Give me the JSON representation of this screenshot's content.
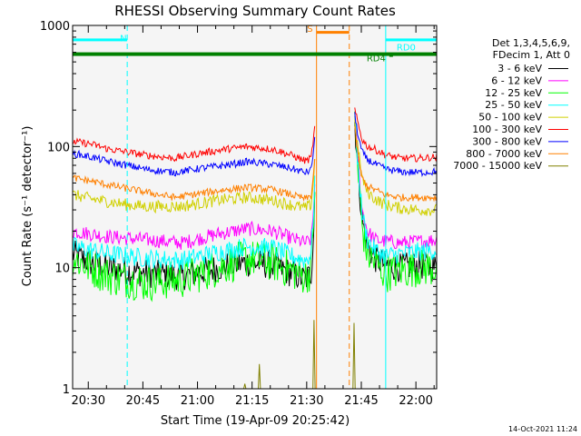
{
  "chart_data": {
    "type": "line",
    "title": "RHESSI Observing Summary Count Rates",
    "xlabel": "Start Time (19-Apr-09 20:25:42)",
    "ylabel": "Count Rate (s⁻¹ detector⁻¹)",
    "x_unit": "minutes after 20:25:42",
    "xlim": [
      0,
      100
    ],
    "ylim": [
      1,
      1000
    ],
    "y_scale": "log",
    "x_ticks": [
      {
        "label": "20:30",
        "value": 4.3
      },
      {
        "label": "20:45",
        "value": 19.3
      },
      {
        "label": "21:00",
        "value": 34.3
      },
      {
        "label": "21:15",
        "value": 49.3
      },
      {
        "label": "21:30",
        "value": 64.3
      },
      {
        "label": "21:45",
        "value": 79.3
      },
      {
        "label": "22:00",
        "value": 94.3
      }
    ],
    "y_ticks": [
      {
        "label": "1",
        "value": 1
      },
      {
        "label": "10",
        "value": 10
      },
      {
        "label": "100",
        "value": 100
      },
      {
        "label": "1000",
        "value": 1000
      }
    ],
    "legend_position": "right",
    "legend_header": [
      "Det 1,3,4,5,6,9,",
      "FDecim 1, Att 0"
    ],
    "timestamp": "14-Oct-2021 11:24",
    "annotations": {
      "N": {
        "label": "N",
        "x_start": 0,
        "x_end": 15,
        "color": "#00ffff"
      },
      "S": {
        "label": "S",
        "x_start": 67,
        "x_end": 76,
        "color": "#ff8000"
      },
      "RD0": {
        "label": "RD0",
        "x_start": 86,
        "x_end": 100,
        "color": "#00ffff"
      },
      "RD4": {
        "label": "RD4",
        "x": 87,
        "color": "#008000"
      }
    },
    "night_band": {
      "x_start": 0,
      "x_end": 100,
      "color": "#008000"
    },
    "vlines": [
      {
        "x": 15,
        "style": "dashed",
        "color": "#00ffff"
      },
      {
        "x": 67,
        "style": "solid",
        "color": "#ff8000"
      },
      {
        "x": 76,
        "style": "dashed",
        "color": "#ff8000"
      },
      {
        "x": 86,
        "style": "solid",
        "color": "#00ffff"
      },
      {
        "x": 100,
        "style": "dashed",
        "color": "#00ffff"
      }
    ],
    "gap": [
      67,
      76
    ],
    "series": [
      {
        "name": "3 - 6 keV",
        "color": "#000000",
        "noise": 0.12,
        "points": [
          [
            0,
            13
          ],
          [
            5,
            11
          ],
          [
            10,
            10
          ],
          [
            15,
            9.5
          ],
          [
            20,
            9
          ],
          [
            30,
            8.5
          ],
          [
            40,
            10
          ],
          [
            48,
            11
          ],
          [
            55,
            10.5
          ],
          [
            60,
            9
          ],
          [
            64,
            8
          ],
          [
            65.5,
            9
          ],
          [
            66.2,
            20
          ],
          [
            66.7,
            70
          ],
          [
            77.5,
            160
          ],
          [
            78.5,
            60
          ],
          [
            79.5,
            25
          ],
          [
            81,
            15
          ],
          [
            83,
            12
          ],
          [
            86,
            10.5
          ],
          [
            90,
            10
          ],
          [
            95,
            10.5
          ],
          [
            100,
            10
          ]
        ]
      },
      {
        "name": "6 - 12 keV",
        "color": "#ff00ff",
        "noise": 0.06,
        "points": [
          [
            0,
            20
          ],
          [
            5,
            19
          ],
          [
            10,
            18
          ],
          [
            15,
            17.5
          ],
          [
            20,
            17
          ],
          [
            30,
            16
          ],
          [
            40,
            19
          ],
          [
            48,
            21
          ],
          [
            55,
            20
          ],
          [
            60,
            17.5
          ],
          [
            64,
            16
          ],
          [
            65.5,
            17
          ],
          [
            66.2,
            30
          ],
          [
            66.7,
            80
          ],
          [
            77.5,
            170
          ],
          [
            78.5,
            70
          ],
          [
            79.5,
            30
          ],
          [
            81,
            20
          ],
          [
            83,
            17
          ],
          [
            86,
            16.5
          ],
          [
            90,
            16
          ],
          [
            95,
            16.5
          ],
          [
            100,
            17
          ]
        ]
      },
      {
        "name": "12 - 25 keV",
        "color": "#00ff00",
        "noise": 0.16,
        "points": [
          [
            0,
            12
          ],
          [
            5,
            10
          ],
          [
            10,
            8.5
          ],
          [
            15,
            8
          ],
          [
            20,
            7.5
          ],
          [
            30,
            8
          ],
          [
            40,
            10
          ],
          [
            48,
            12
          ],
          [
            55,
            11
          ],
          [
            60,
            9.5
          ],
          [
            64,
            8.5
          ],
          [
            65.5,
            9.5
          ],
          [
            66.2,
            25
          ],
          [
            66.7,
            75
          ],
          [
            77.5,
            150
          ],
          [
            78.5,
            55
          ],
          [
            79.5,
            22
          ],
          [
            81,
            13
          ],
          [
            83,
            11
          ],
          [
            86,
            9
          ],
          [
            90,
            9.5
          ],
          [
            95,
            10
          ],
          [
            100,
            10
          ]
        ]
      },
      {
        "name": "25 - 50 keV",
        "color": "#00ffff",
        "noise": 0.08,
        "points": [
          [
            0,
            15
          ],
          [
            5,
            14
          ],
          [
            10,
            13
          ],
          [
            15,
            12.5
          ],
          [
            20,
            12
          ],
          [
            30,
            11.5
          ],
          [
            40,
            13.5
          ],
          [
            48,
            15
          ],
          [
            55,
            14.5
          ],
          [
            60,
            12.5
          ],
          [
            64,
            11.5
          ],
          [
            65.5,
            13
          ],
          [
            66.2,
            30
          ],
          [
            66.7,
            80
          ],
          [
            77.5,
            170
          ],
          [
            78.5,
            65
          ],
          [
            79.5,
            28
          ],
          [
            81,
            17
          ],
          [
            83,
            14
          ],
          [
            86,
            12.5
          ],
          [
            90,
            13
          ],
          [
            95,
            13.5
          ],
          [
            100,
            14
          ]
        ]
      },
      {
        "name": "50 - 100 keV",
        "color": "#d0d000",
        "noise": 0.05,
        "points": [
          [
            0,
            40
          ],
          [
            5,
            37
          ],
          [
            10,
            35
          ],
          [
            15,
            33
          ],
          [
            20,
            32
          ],
          [
            30,
            32
          ],
          [
            40,
            36
          ],
          [
            48,
            38
          ],
          [
            55,
            36
          ],
          [
            60,
            33
          ],
          [
            64,
            31
          ],
          [
            65.5,
            33
          ],
          [
            66.2,
            55
          ],
          [
            66.7,
            100
          ],
          [
            77.5,
            160
          ],
          [
            78.5,
            90
          ],
          [
            79.5,
            55
          ],
          [
            81,
            42
          ],
          [
            83,
            37
          ],
          [
            86,
            33
          ],
          [
            90,
            31
          ],
          [
            95,
            30
          ],
          [
            100,
            30
          ]
        ]
      },
      {
        "name": "100 - 300 keV",
        "color": "#ff0000",
        "noise": 0.03,
        "points": [
          [
            0,
            110
          ],
          [
            5,
            105
          ],
          [
            10,
            95
          ],
          [
            15,
            90
          ],
          [
            20,
            85
          ],
          [
            28,
            80
          ],
          [
            35,
            88
          ],
          [
            42,
            95
          ],
          [
            48,
            100
          ],
          [
            55,
            95
          ],
          [
            60,
            85
          ],
          [
            64,
            76
          ],
          [
            65.5,
            80
          ],
          [
            66.2,
            120
          ],
          [
            66.7,
            160
          ],
          [
            77.5,
            200
          ],
          [
            78.5,
            150
          ],
          [
            79.5,
            115
          ],
          [
            81,
            100
          ],
          [
            83,
            95
          ],
          [
            86,
            85
          ],
          [
            90,
            80
          ],
          [
            95,
            80
          ],
          [
            100,
            82
          ]
        ]
      },
      {
        "name": "300 - 800 keV",
        "color": "#0000ff",
        "noise": 0.03,
        "points": [
          [
            0,
            88
          ],
          [
            5,
            82
          ],
          [
            10,
            75
          ],
          [
            15,
            70
          ],
          [
            20,
            65
          ],
          [
            28,
            61
          ],
          [
            35,
            66
          ],
          [
            42,
            70
          ],
          [
            48,
            75
          ],
          [
            55,
            71
          ],
          [
            60,
            66
          ],
          [
            64,
            61
          ],
          [
            65.5,
            64
          ],
          [
            66.2,
            95
          ],
          [
            66.7,
            140
          ],
          [
            77.5,
            180
          ],
          [
            78.5,
            120
          ],
          [
            79.5,
            90
          ],
          [
            81,
            78
          ],
          [
            83,
            72
          ],
          [
            86,
            65
          ],
          [
            90,
            62
          ],
          [
            95,
            61
          ],
          [
            100,
            62
          ]
        ]
      },
      {
        "name": "800 - 7000 keV",
        "color": "#ff8000",
        "noise": 0.03,
        "points": [
          [
            0,
            55
          ],
          [
            5,
            52
          ],
          [
            10,
            48
          ],
          [
            15,
            45
          ],
          [
            20,
            42
          ],
          [
            28,
            38
          ],
          [
            35,
            41
          ],
          [
            42,
            44
          ],
          [
            48,
            46
          ],
          [
            55,
            44
          ],
          [
            60,
            40
          ],
          [
            64,
            37
          ],
          [
            65.5,
            39
          ],
          [
            66.2,
            60
          ],
          [
            66.7,
            100
          ],
          [
            77.5,
            140
          ],
          [
            78.5,
            80
          ],
          [
            79.5,
            55
          ],
          [
            81,
            47
          ],
          [
            83,
            44
          ],
          [
            86,
            40
          ],
          [
            90,
            38
          ],
          [
            95,
            38
          ],
          [
            100,
            38
          ]
        ]
      },
      {
        "name": "7000 - 15000 keV",
        "color": "#808000",
        "noise": 0,
        "points": [
          [
            0,
            1
          ],
          [
            47,
            1
          ],
          [
            47.3,
            1.1
          ],
          [
            47.6,
            1
          ],
          [
            51,
            1
          ],
          [
            51.3,
            1.6
          ],
          [
            51.6,
            1
          ],
          [
            66,
            1
          ],
          [
            66.3,
            3.7
          ],
          [
            66.6,
            1
          ],
          [
            77,
            1
          ],
          [
            77.3,
            3.5
          ],
          [
            77.6,
            1
          ],
          [
            100,
            1
          ]
        ]
      }
    ]
  }
}
